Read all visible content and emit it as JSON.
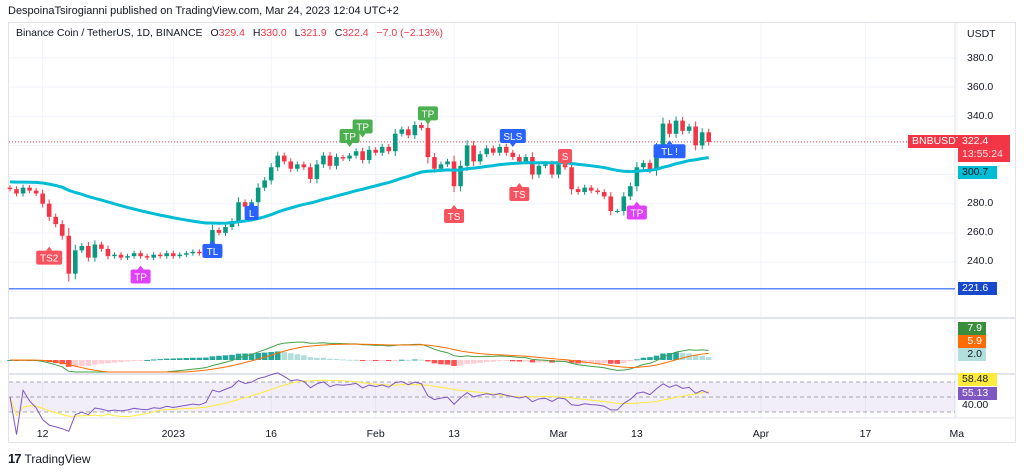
{
  "header": {
    "publisher_line": "DespoinaTsirogianni published on TradingView.com, Mar 24, 2023 12:04 UTC+2"
  },
  "legend": {
    "symbol": "Binance Coin / TetherUS, 1D, BINANCE",
    "o_label": "O",
    "o": "329.4",
    "h_label": "H",
    "h": "330.0",
    "l_label": "L",
    "l": "321.9",
    "c_label": "C",
    "c": "322.4",
    "change": "−7.0 (−2.13%)"
  },
  "price_axis": {
    "currency": "USDT",
    "ticks": [
      "380.0",
      "360.0",
      "340.0",
      "280.0",
      "260.0",
      "240.0"
    ]
  },
  "badges": {
    "symbol": "BNBUSDT",
    "last_price": "322.4",
    "countdown": "13:55:24",
    "ma_value": "300.7",
    "hline_value": "221.6",
    "macd": "7.9",
    "signal": "5.9",
    "hist": "2.0",
    "rsi_ma": "58.48",
    "rsi": "55.13",
    "rsi_level": "40.00"
  },
  "time_axis": [
    {
      "label": "12",
      "day": 5
    },
    {
      "label": "2023",
      "day": 25
    },
    {
      "label": "16",
      "day": 40
    },
    {
      "label": "Feb",
      "day": 56
    },
    {
      "label": "13",
      "day": 68
    },
    {
      "label": "Mar",
      "day": 84
    },
    {
      "label": "13",
      "day": 96
    },
    {
      "label": "Apr",
      "day": 115
    },
    {
      "label": "17",
      "day": 131
    },
    {
      "label": "Ma",
      "day": 145
    }
  ],
  "footer": {
    "brand": "TradingView"
  },
  "colors": {
    "up": "#089981",
    "down": "#f23645",
    "ma": "#00bcd4",
    "hline": "#2962ff",
    "macd": "#43a047",
    "signal": "#ff6d00",
    "rsi": "#7e57c2",
    "rsi_ma": "#ffeb3b"
  },
  "chart_data": {
    "type": "candlestick",
    "start_date": "2022-12-07",
    "interval": "1D",
    "ylim": [
      210,
      390
    ],
    "open_first": 291,
    "closes": [
      290,
      287,
      291,
      289,
      287,
      280,
      271,
      266,
      258,
      232,
      248,
      251,
      243,
      252,
      249,
      244,
      245,
      243,
      244,
      246,
      244,
      243,
      245,
      244,
      246,
      244,
      245,
      246,
      247,
      246,
      248,
      262,
      260,
      264,
      268,
      281,
      278,
      281,
      291,
      296,
      305,
      313,
      309,
      304,
      307,
      305,
      297,
      307,
      313,
      306,
      312,
      311,
      313,
      316,
      310,
      317,
      315,
      319,
      316,
      328,
      331,
      327,
      334,
      332,
      312,
      304,
      307,
      309,
      292,
      306,
      320,
      309,
      314,
      318,
      315,
      319,
      315,
      312,
      309,
      312,
      300,
      306,
      307,
      300,
      307,
      305,
      290,
      288,
      291,
      289,
      288,
      285,
      275,
      275,
      285,
      292,
      305,
      308,
      303,
      318,
      335,
      328,
      337,
      330,
      333,
      320,
      329,
      322.4
    ],
    "horizontal_line": 221.6,
    "ma_period": 50,
    "signals": [
      {
        "text": "TS2",
        "day": 6,
        "price": 243,
        "color": "#f7525f",
        "side": "below"
      },
      {
        "text": "TP",
        "day": 20,
        "price": 230,
        "color": "#e040fb",
        "side": "below"
      },
      {
        "text": "TL",
        "day": 31,
        "price": 247.5,
        "color": "#2962ff",
        "side": "below"
      },
      {
        "text": "L",
        "day": 37,
        "price": 273.6,
        "color": "#2962ff",
        "side": "below"
      },
      {
        "text": "TP",
        "day": 52,
        "price": 326.5,
        "color": "#4caf50",
        "side": "above"
      },
      {
        "text": "TP",
        "day": 54,
        "price": 333,
        "color": "#4caf50",
        "side": "above"
      },
      {
        "text": "TP",
        "day": 64,
        "price": 342,
        "color": "#4caf50",
        "side": "above"
      },
      {
        "text": "TS",
        "day": 68,
        "price": 271.6,
        "color": "#f7525f",
        "side": "below"
      },
      {
        "text": "SLS",
        "day": 77,
        "price": 326.5,
        "color": "#2962ff",
        "side": "above"
      },
      {
        "text": "TS",
        "day": 78,
        "price": 286.7,
        "color": "#f7525f",
        "side": "below"
      },
      {
        "text": "S",
        "day": 85,
        "price": 312.7,
        "color": "#f7525f",
        "side": "above"
      },
      {
        "text": "TP",
        "day": 96,
        "price": 274,
        "color": "#e040fb",
        "side": "below"
      },
      {
        "text": "TL !",
        "day": 101,
        "price": 316,
        "color": "#2962ff",
        "side": "below"
      }
    ],
    "rsi_levels": [
      70,
      50,
      30
    ]
  }
}
